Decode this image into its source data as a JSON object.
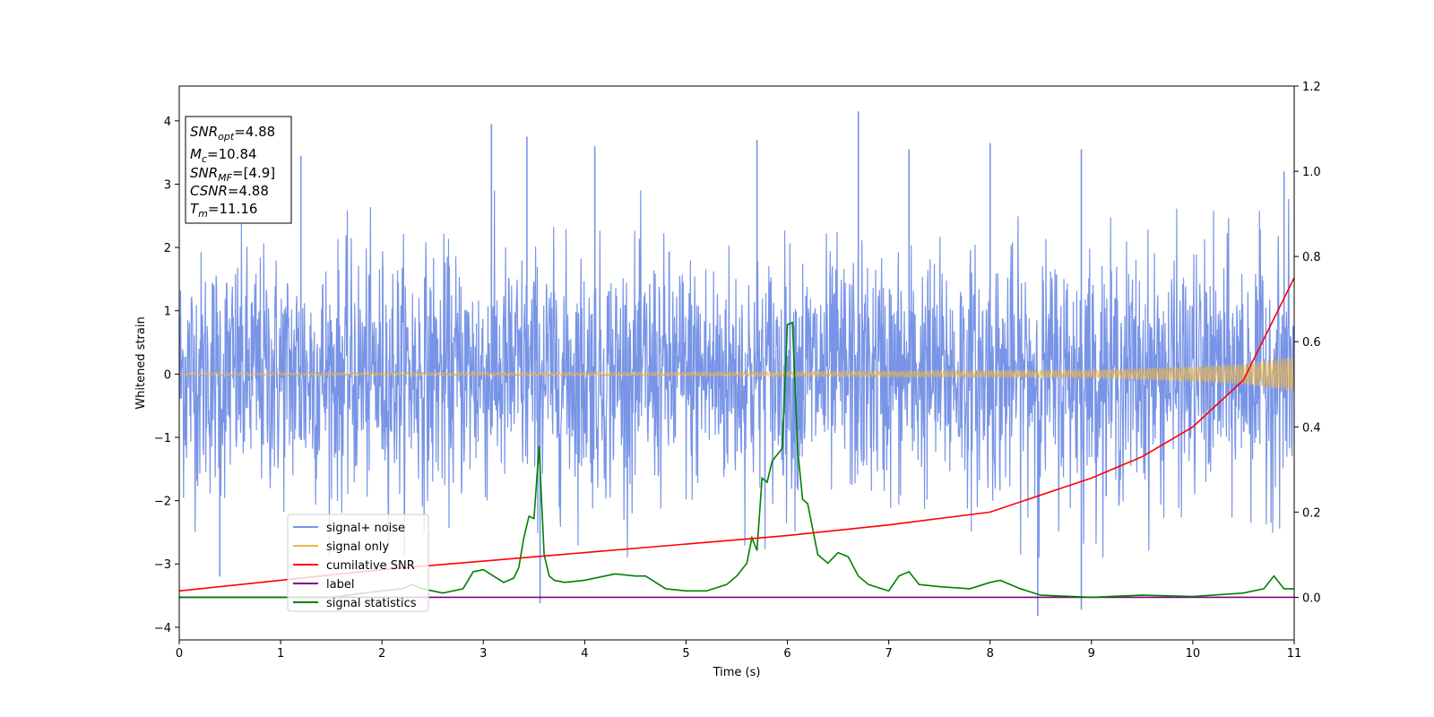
{
  "chart_data": {
    "type": "line",
    "xlabel": "Time (s)",
    "ylabel": "Whitened strain",
    "xlim": [
      0,
      11
    ],
    "ylim_left": [
      -4.2,
      4.55
    ],
    "ylim_right": [
      -0.1,
      1.2
    ],
    "x_ticks": [
      "0",
      "1",
      "2",
      "3",
      "4",
      "5",
      "6",
      "7",
      "8",
      "9",
      "10",
      "11"
    ],
    "y_ticks_left": [
      "−4",
      "−3",
      "−2",
      "−1",
      "0",
      "1",
      "2",
      "3",
      "4"
    ],
    "y_ticks_right": [
      "0.0",
      "0.2",
      "0.4",
      "0.6",
      "0.8",
      "1.0",
      "1.2"
    ],
    "grid": false,
    "legend_position": "lower-left",
    "info_box": {
      "snr_opt": {
        "base": "SNR",
        "sub": "opt",
        "value": "=4.88"
      },
      "mc": {
        "base": "M",
        "sub": "c",
        "value": "=10.84"
      },
      "snr_mf": {
        "base": "SNR",
        "sub": "MF",
        "value": "=[4.9]"
      },
      "csnr": {
        "base": "CSNR",
        "sub": "",
        "value": "=4.88"
      },
      "tm": {
        "base": "T",
        "sub": "m",
        "value": "=11.16"
      }
    },
    "series": [
      {
        "name": "signal+ noise",
        "axis": "left",
        "color": "#7894e6",
        "envelope_typical": 1.5,
        "peak_spikes": [
          {
            "x": 1.2,
            "y": 3.45
          },
          {
            "x": 3.08,
            "y": 3.95
          },
          {
            "x": 3.43,
            "y": 3.75
          },
          {
            "x": 4.1,
            "y": 3.6
          },
          {
            "x": 5.7,
            "y": 3.7
          },
          {
            "x": 6.7,
            "y": 4.15
          },
          {
            "x": 7.2,
            "y": 3.55
          },
          {
            "x": 8.0,
            "y": 3.65
          },
          {
            "x": 8.9,
            "y": 3.55
          },
          {
            "x": 10.9,
            "y": 3.2
          },
          {
            "x": 3.56,
            "y": -3.62
          },
          {
            "x": 8.47,
            "y": -3.82
          },
          {
            "x": 8.9,
            "y": -3.72
          },
          {
            "x": 0.4,
            "y": -3.2
          }
        ]
      },
      {
        "name": "signal only",
        "axis": "left",
        "color": "#f0b84a",
        "amplitude": [
          [
            0,
            0.02
          ],
          [
            5,
            0.03
          ],
          [
            9,
            0.06
          ],
          [
            10,
            0.12
          ],
          [
            10.5,
            0.16
          ],
          [
            11,
            0.28
          ]
        ]
      },
      {
        "name": "cumilative SNR",
        "axis": "right",
        "color": "#ff0000",
        "x": [
          0,
          1,
          2,
          3,
          4,
          5,
          6,
          7,
          8,
          9,
          9.5,
          10,
          10.5,
          11
        ],
        "y": [
          0.015,
          0.04,
          0.065,
          0.085,
          0.105,
          0.125,
          0.145,
          0.17,
          0.2,
          0.28,
          0.33,
          0.4,
          0.51,
          0.75
        ]
      },
      {
        "name": "label",
        "axis": "right",
        "color": "#800080",
        "x": [
          0,
          11
        ],
        "y": [
          0.0,
          0.0
        ]
      },
      {
        "name": "signal statistics",
        "axis": "right",
        "color": "#008000",
        "x": [
          0,
          0.5,
          1.0,
          1.5,
          2.0,
          2.2,
          2.3,
          2.4,
          2.6,
          2.8,
          2.9,
          3.0,
          3.1,
          3.2,
          3.3,
          3.35,
          3.4,
          3.45,
          3.5,
          3.55,
          3.6,
          3.65,
          3.7,
          3.8,
          4.0,
          4.2,
          4.3,
          4.5,
          4.6,
          4.8,
          5.0,
          5.2,
          5.4,
          5.5,
          5.6,
          5.65,
          5.7,
          5.75,
          5.8,
          5.85,
          5.95,
          6.0,
          6.05,
          6.1,
          6.15,
          6.2,
          6.3,
          6.4,
          6.5,
          6.6,
          6.7,
          6.8,
          7.0,
          7.1,
          7.2,
          7.3,
          7.5,
          7.8,
          8.0,
          8.1,
          8.2,
          8.3,
          8.5,
          9.0,
          9.5,
          10.0,
          10.5,
          10.7,
          10.8,
          10.9,
          11.0
        ],
        "y": [
          0.0,
          0.0,
          0.0,
          0.0,
          0.015,
          0.02,
          0.03,
          0.02,
          0.01,
          0.02,
          0.06,
          0.065,
          0.05,
          0.035,
          0.045,
          0.07,
          0.14,
          0.19,
          0.185,
          0.355,
          0.1,
          0.05,
          0.04,
          0.035,
          0.04,
          0.05,
          0.055,
          0.05,
          0.05,
          0.02,
          0.015,
          0.015,
          0.03,
          0.05,
          0.08,
          0.14,
          0.11,
          0.28,
          0.27,
          0.32,
          0.35,
          0.64,
          0.645,
          0.35,
          0.23,
          0.22,
          0.1,
          0.08,
          0.105,
          0.095,
          0.05,
          0.03,
          0.015,
          0.05,
          0.06,
          0.03,
          0.025,
          0.02,
          0.035,
          0.04,
          0.03,
          0.02,
          0.005,
          0.0,
          0.005,
          0.002,
          0.01,
          0.02,
          0.05,
          0.02,
          0.02
        ]
      }
    ]
  }
}
